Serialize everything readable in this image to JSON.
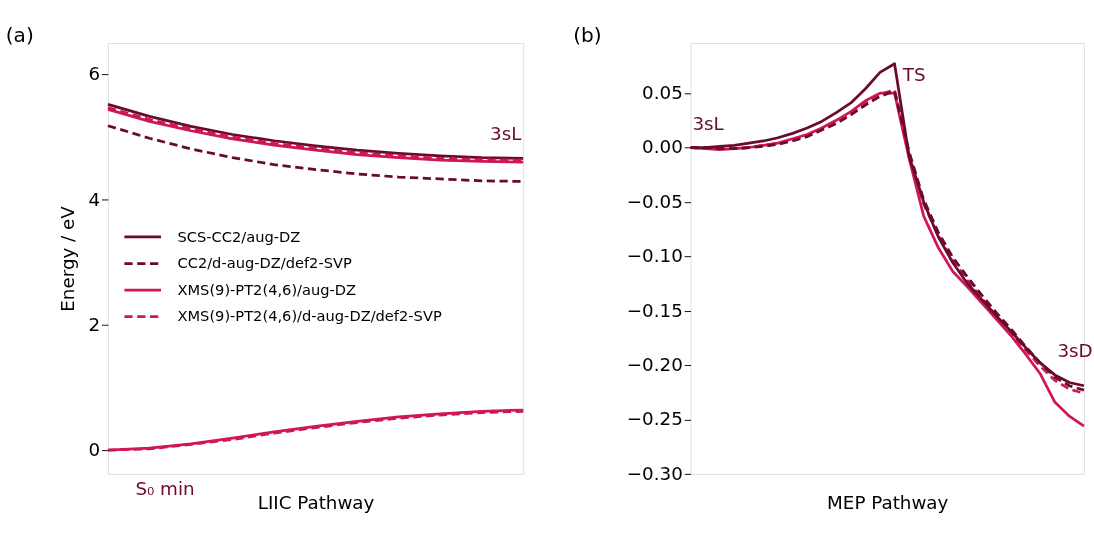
{
  "chart_data": [
    {
      "type": "line",
      "title": "(a)",
      "xlabel": "LIIC Pathway",
      "ylabel": "Energy / eV",
      "categories": [
        null,
        null,
        null,
        null,
        null,
        null,
        null,
        null,
        null,
        null,
        null
      ],
      "ylim": [
        -0.38,
        6.5
      ],
      "yticks": [
        0,
        2,
        4,
        6
      ],
      "tick_labels": "y",
      "legend": "left",
      "annotations": [
        "3sL",
        "S₀ min"
      ],
      "series": [
        {
          "name": "SCS-CC2/aug-DZ",
          "color": "#6a0a30",
          "line_style": "solid",
          "values": [
            5.52,
            5.33,
            5.17,
            5.04,
            4.94,
            4.86,
            4.79,
            4.74,
            4.7,
            4.67,
            4.66
          ]
        },
        {
          "name": "CC2/d-aug-DZ/def2-SVP",
          "color": "#6a0a30",
          "line_style": "dashed",
          "values": [
            5.18,
            4.98,
            4.81,
            4.67,
            4.56,
            4.48,
            4.41,
            4.36,
            4.33,
            4.3,
            4.29
          ]
        },
        {
          "name": "XMS(9)-PT2(4,6)/aug-DZ",
          "color": "#d01558",
          "line_style": "solid",
          "values": [
            5.44,
            5.25,
            5.1,
            4.97,
            4.87,
            4.79,
            4.72,
            4.67,
            4.63,
            4.61,
            4.6
          ]
        },
        {
          "name": "XMS(9)-PT2(4,6)/d-aug-DZ/def2-SVP",
          "color": "#d01558",
          "line_style": "dashed",
          "values": [
            5.47,
            5.28,
            5.13,
            5.0,
            4.9,
            4.82,
            4.75,
            4.7,
            4.66,
            4.64,
            4.63
          ]
        },
        {
          "color": "#d01558",
          "line_style": "dashed",
          "values": [
            0,
            0.02,
            0.09,
            0.17,
            0.27,
            0.36,
            0.44,
            0.51,
            0.56,
            0.6,
            0.62
          ]
        },
        {
          "color": "#d01558",
          "line_style": "solid",
          "values": [
            0,
            0.03,
            0.1,
            0.19,
            0.29,
            0.38,
            0.46,
            0.53,
            0.58,
            0.62,
            0.64
          ]
        }
      ]
    },
    {
      "type": "line",
      "title": "(b)",
      "xlabel": "MEP Pathway",
      "categories": [
        null,
        null,
        null,
        null,
        null,
        null,
        null,
        null,
        null,
        null,
        null,
        null,
        null,
        null,
        null,
        null,
        null,
        null,
        null,
        null,
        null,
        null,
        null,
        null,
        null,
        null,
        null,
        null
      ],
      "ylim": [
        -0.3,
        0.096
      ],
      "yticks": [
        {
          "value": -0.3,
          "label": "−0.30"
        },
        {
          "value": -0.25,
          "label": "−0.25"
        },
        {
          "value": -0.2,
          "label": "−0.20"
        },
        {
          "value": -0.15,
          "label": "−0.15"
        },
        {
          "value": -0.1,
          "label": "−0.10"
        },
        {
          "value": -0.05,
          "label": "−0.05"
        },
        {
          "value": 0,
          "label": "0.00"
        },
        {
          "value": 0.05,
          "label": "0.05"
        }
      ],
      "tick_labels": "y",
      "annotations": [
        "3sL",
        "TS",
        "3sD"
      ],
      "series": [
        {
          "color": "#d01558",
          "line_style": "solid",
          "values": [
            0,
            -0.001,
            -0.002,
            -0.001,
            0.0,
            0.002,
            0.004,
            0.008,
            0.012,
            0.018,
            0.025,
            0.033,
            0.043,
            0.05,
            0.05,
            -0.01,
            -0.063,
            -0.092,
            -0.114,
            -0.128,
            -0.143,
            -0.158,
            -0.173,
            -0.19,
            -0.208,
            -0.234,
            -0.247,
            -0.256
          ]
        },
        {
          "color": "#d01558",
          "line_style": "dashed",
          "values": [
            0,
            -0.001,
            -0.001,
            -0.001,
            0.0,
            0.002,
            0.004,
            0.007,
            0.011,
            0.017,
            0.024,
            0.032,
            0.041,
            0.049,
            0.053,
            -0.006,
            -0.052,
            -0.081,
            -0.104,
            -0.122,
            -0.139,
            -0.155,
            -0.17,
            -0.186,
            -0.201,
            -0.214,
            -0.222,
            -0.226
          ]
        },
        {
          "color": "#6a0a30",
          "line_style": "dashed",
          "values": [
            0,
            0.0,
            -0.001,
            -0.001,
            0.0,
            0.001,
            0.003,
            0.006,
            0.01,
            0.016,
            0.022,
            0.03,
            0.039,
            0.047,
            0.052,
            -0.004,
            -0.048,
            -0.078,
            -0.101,
            -0.119,
            -0.136,
            -0.152,
            -0.167,
            -0.183,
            -0.198,
            -0.211,
            -0.219,
            -0.223
          ]
        },
        {
          "color": "#6a0a30",
          "line_style": "solid",
          "values": [
            0,
            0.0,
            0.001,
            0.002,
            0.004,
            0.006,
            0.009,
            0.013,
            0.018,
            0.024,
            0.032,
            0.041,
            0.054,
            0.069,
            0.077,
            -0.008,
            -0.05,
            -0.082,
            -0.106,
            -0.125,
            -0.14,
            -0.155,
            -0.169,
            -0.184,
            -0.198,
            -0.209,
            -0.216,
            -0.219
          ]
        }
      ]
    }
  ]
}
